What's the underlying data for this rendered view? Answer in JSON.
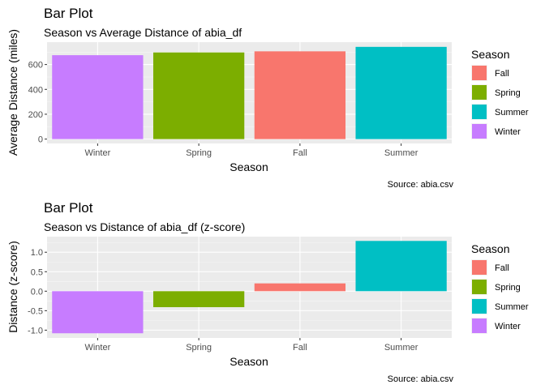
{
  "chart_data": [
    {
      "type": "bar",
      "title": "Bar Plot",
      "subtitle": "Season vs Average Distance of abia_df",
      "xlabel": "Season",
      "ylabel": "Average Distance (miles)",
      "caption": "Source: abia.csv",
      "categories": [
        "Winter",
        "Spring",
        "Fall",
        "Summer"
      ],
      "values": [
        675,
        697,
        706,
        742
      ],
      "colors": [
        "#C77CFF",
        "#7CAE00",
        "#F8766D",
        "#00BFC4"
      ],
      "ylim": [
        -35,
        780
      ],
      "yticks": [
        0,
        200,
        400,
        600
      ],
      "ytick_labels": [
        "0",
        "200",
        "400",
        "600"
      ],
      "grid": true,
      "legend": {
        "title": "Season",
        "position": "right",
        "items": [
          {
            "label": "Fall",
            "color": "#F8766D"
          },
          {
            "label": "Spring",
            "color": "#7CAE00"
          },
          {
            "label": "Summer",
            "color": "#00BFC4"
          },
          {
            "label": "Winter",
            "color": "#C77CFF"
          }
        ]
      }
    },
    {
      "type": "bar",
      "title": "Bar Plot",
      "subtitle": "Season vs Distance of abia_df (z-score)",
      "xlabel": "Season",
      "ylabel": "Distance (z-score)",
      "caption": "Source: abia.csv",
      "categories": [
        "Winter",
        "Spring",
        "Fall",
        "Summer"
      ],
      "values": [
        -1.08,
        -0.41,
        0.2,
        1.29
      ],
      "colors": [
        "#C77CFF",
        "#7CAE00",
        "#F8766D",
        "#00BFC4"
      ],
      "ylim": [
        -1.2,
        1.4
      ],
      "yticks": [
        -1.0,
        -0.5,
        0.0,
        0.5,
        1.0
      ],
      "ytick_labels": [
        "-1.0",
        "-0.5",
        "0.0",
        "0.5",
        "1.0"
      ],
      "grid": true,
      "legend": {
        "title": "Season",
        "position": "right",
        "items": [
          {
            "label": "Fall",
            "color": "#F8766D"
          },
          {
            "label": "Spring",
            "color": "#7CAE00"
          },
          {
            "label": "Summer",
            "color": "#00BFC4"
          },
          {
            "label": "Winter",
            "color": "#C77CFF"
          }
        ]
      }
    }
  ]
}
